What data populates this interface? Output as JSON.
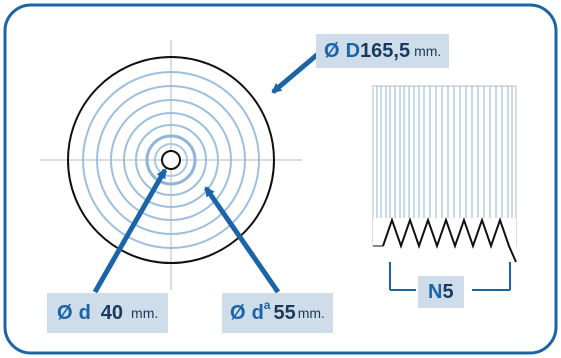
{
  "labels": {
    "outer_diameter": {
      "symbol": "Ø",
      "letter": "D",
      "value": "165,5",
      "unit": "mm."
    },
    "inner_diameter": {
      "symbol": "Ø",
      "letter": "d",
      "value": "40",
      "unit": "mm."
    },
    "hub_diameter": {
      "symbol": "Ø",
      "letter": "d",
      "superscript": "a",
      "value": "55",
      "unit": "mm."
    },
    "grooves": {
      "letter": "N",
      "value": "5"
    }
  },
  "colors": {
    "accent": "#1a64a8",
    "label_bg": "#cfdcea",
    "ring": "#8fb4d9",
    "frame": "#1a64a8"
  }
}
